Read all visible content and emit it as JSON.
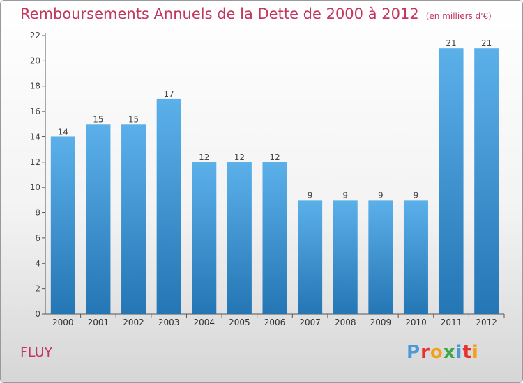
{
  "title": "Remboursements Annuels de la Dette de 2000 à 2012",
  "unit": "(en milliers d'€)",
  "city": "FLUY",
  "logo": {
    "letters": [
      "P",
      "r",
      "o",
      "x",
      "i",
      "t",
      "i"
    ],
    "colors": [
      "#4a9ad8",
      "#e8302c",
      "#f2a11c",
      "#3aa84a",
      "#4a9ad8",
      "#e8302c",
      "#f2a11c"
    ]
  },
  "colors": {
    "bar_top": "#5cb0ea",
    "bar_bottom": "#2476b4",
    "title": "#c2375e",
    "axis": "#555555"
  },
  "chart_data": {
    "type": "bar",
    "categories": [
      "2000",
      "2001",
      "2002",
      "2003",
      "2004",
      "2005",
      "2006",
      "2007",
      "2008",
      "2009",
      "2010",
      "2011",
      "2012"
    ],
    "values": [
      14,
      15,
      15,
      17,
      12,
      12,
      12,
      9,
      9,
      9,
      9,
      21,
      21
    ],
    "ylim": [
      0,
      22
    ],
    "yticks": [
      0,
      2,
      4,
      6,
      8,
      10,
      12,
      14,
      16,
      18,
      20,
      22
    ],
    "grid": false,
    "legend": "none",
    "data_labels": true
  }
}
